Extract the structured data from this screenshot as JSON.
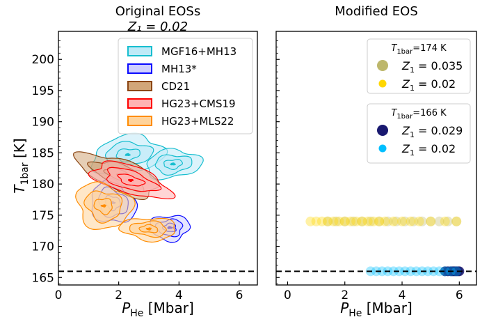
{
  "figure": {
    "left_title_line1": "Original EOSs",
    "left_title_line2": "Z₁ = 0.02",
    "right_title": "Modified EOS",
    "ylabel_main": "T",
    "ylabel_sub": "1bar",
    "ylabel_unit": " [K]",
    "xlabel_main": "P",
    "xlabel_sub": "He",
    "xlabel_unit": " [Mbar]"
  },
  "chart_data": [
    {
      "type": "contour",
      "panel": "left",
      "xlim": [
        0,
        6.6
      ],
      "ylim": [
        163.8,
        204.5
      ],
      "xticks": [
        "0",
        "2",
        "4",
        "6"
      ],
      "yticks": [
        "165",
        "170",
        "175",
        "180",
        "185",
        "190",
        "195",
        "200"
      ],
      "reference_line": {
        "y": 166,
        "style": "dashed",
        "color": "#000000"
      },
      "legend_position": "top-right",
      "series": [
        {
          "name": "MGF16+MH13",
          "color": "#17becf",
          "fill": "#bfeaf7",
          "regions": [
            {
              "cx": 2.3,
              "cy": 184.7
            },
            {
              "cx": 3.8,
              "cy": 183.2
            }
          ]
        },
        {
          "name": "MH13*",
          "color": "#0a0aff",
          "fill": "#d0d0ff",
          "regions": [
            {
              "cx": 1.8,
              "cy": 177.0
            },
            {
              "cx": 3.7,
              "cy": 173.0
            }
          ]
        },
        {
          "name": "CD21",
          "color": "#8b4513",
          "fill": "#d2a679",
          "regions": [
            {
              "cx": 2.0,
              "cy": 181.5
            }
          ]
        },
        {
          "name": "HG23+CMS19",
          "color": "#ff0000",
          "fill": "#ffb3b3",
          "regions": [
            {
              "cx": 2.4,
              "cy": 180.6
            }
          ]
        },
        {
          "name": "HG23+MLS22",
          "color": "#ff8c00",
          "fill": "#ffd39b",
          "regions": [
            {
              "cx": 1.5,
              "cy": 176.5
            },
            {
              "cx": 3.0,
              "cy": 172.8
            }
          ]
        }
      ]
    },
    {
      "type": "scatter",
      "panel": "right",
      "xlim": [
        -0.4,
        6.6
      ],
      "ylim": [
        163.8,
        204.5
      ],
      "xticks": [
        "0",
        "2",
        "4",
        "6"
      ],
      "reference_line": {
        "y": 166,
        "style": "dashed",
        "color": "#000000"
      },
      "legend_groups": [
        {
          "title_main": "T",
          "title_sub": "1bar",
          "title_rest": "=174 K",
          "entries": [
            {
              "label_main": "Z",
              "label_sub": "1",
              "label_rest": " = 0.035",
              "color": "#bdb76b"
            },
            {
              "label_main": "Z",
              "label_sub": "1",
              "label_rest": " = 0.02",
              "color": "#ffd700"
            }
          ]
        },
        {
          "title_main": "T",
          "title_sub": "1bar",
          "title_rest": "=166 K",
          "entries": [
            {
              "label_main": "Z",
              "label_sub": "1",
              "label_rest": " = 0.029",
              "color": "#191970"
            },
            {
              "label_main": "Z",
              "label_sub": "1",
              "label_rest": " = 0.02",
              "color": "#00bfff"
            }
          ]
        }
      ],
      "series": [
        {
          "name": "T1bar=174 K, Z1=0.035",
          "color": "#bdb76b",
          "y": 174,
          "x": [
            1.4,
            1.7,
            2.0,
            2.3,
            2.6,
            2.9,
            3.2,
            3.5,
            3.8,
            4.1,
            4.4,
            4.7,
            5.0,
            5.3,
            5.6,
            5.9
          ]
        },
        {
          "name": "T1bar=174 K, Z1=0.02",
          "color": "#ffd700",
          "y": 174,
          "x": [
            0.8,
            1.0,
            1.2,
            1.4,
            1.6,
            1.8,
            2.0,
            2.2,
            2.4,
            2.6,
            2.8,
            3.0,
            3.2,
            3.4,
            3.7,
            4.0,
            4.3,
            4.6,
            5.0,
            5.5,
            5.9
          ]
        },
        {
          "name": "T1bar=166 K, Z1=0.029",
          "color": "#191970",
          "y": 166,
          "x": [
            5.5,
            5.6,
            5.7,
            5.75,
            5.8,
            5.85,
            5.9,
            5.95,
            6.0
          ]
        },
        {
          "name": "T1bar=166 K, Z1=0.02",
          "color": "#00bfff",
          "y": 166,
          "x": [
            2.9,
            3.1,
            3.3,
            3.5,
            3.7,
            3.9,
            4.1,
            4.3,
            4.5,
            4.7,
            4.9,
            5.1,
            5.3,
            5.5,
            5.7,
            5.9
          ]
        }
      ]
    }
  ]
}
